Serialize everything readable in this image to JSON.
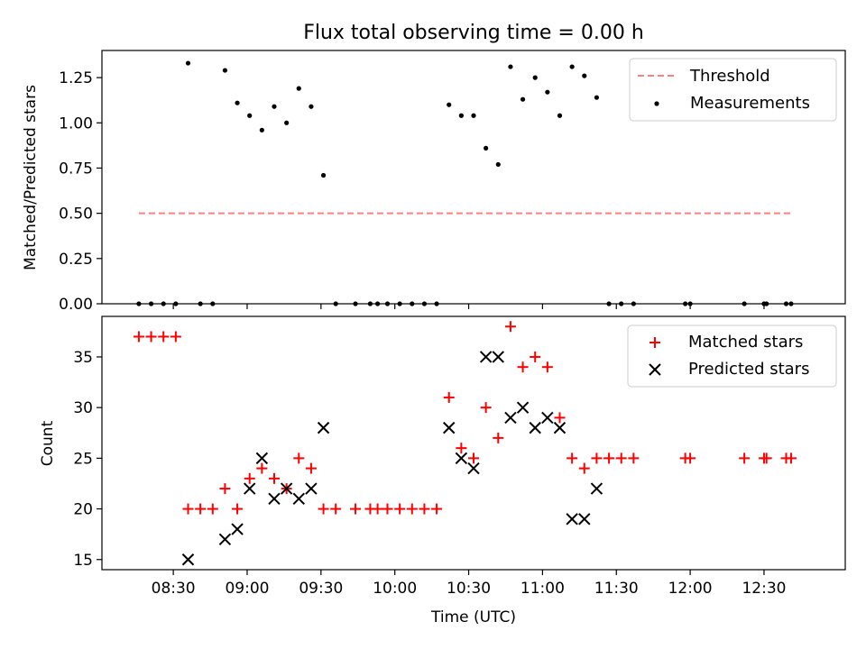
{
  "title": "Flux total observing time = 0.00 h",
  "colors": {
    "threshold": "#ff7f7f",
    "measurements": "#000000",
    "matched": "#ff0000",
    "predicted": "#000000"
  },
  "chart_data": [
    {
      "type": "scatter",
      "ylabel": "Matched/Predicted stars",
      "ylim": [
        0,
        1.4
      ],
      "yticks": [
        "0.00",
        "0.25",
        "0.50",
        "0.75",
        "1.00",
        "1.25"
      ],
      "ytick_values": [
        0,
        0.25,
        0.5,
        0.75,
        1.0,
        1.25
      ],
      "xlim": [
        "08:01",
        "13:03"
      ],
      "threshold": {
        "name": "Threshold",
        "y": 0.5,
        "x_start": "08:16",
        "x_end": "12:41"
      },
      "legend_position": "upper right",
      "series": [
        {
          "name": "Measurements",
          "marker": "dot",
          "points": [
            [
              "08:16",
              0
            ],
            [
              "08:21",
              0
            ],
            [
              "08:26",
              0
            ],
            [
              "08:31",
              0
            ],
            [
              "08:36",
              1.33
            ],
            [
              "08:41",
              0
            ],
            [
              "08:46",
              0
            ],
            [
              "08:51",
              1.29
            ],
            [
              "08:56",
              1.11
            ],
            [
              "09:01",
              1.04
            ],
            [
              "09:06",
              0.96
            ],
            [
              "09:11",
              1.09
            ],
            [
              "09:16",
              1.0
            ],
            [
              "09:21",
              1.19
            ],
            [
              "09:26",
              1.09
            ],
            [
              "09:31",
              0.71
            ],
            [
              "09:36",
              0
            ],
            [
              "09:44",
              0
            ],
            [
              "09:50",
              0
            ],
            [
              "09:53",
              0
            ],
            [
              "09:57",
              0
            ],
            [
              "10:02",
              0
            ],
            [
              "10:07",
              0
            ],
            [
              "10:12",
              0
            ],
            [
              "10:17",
              0
            ],
            [
              "10:22",
              1.1
            ],
            [
              "10:27",
              1.04
            ],
            [
              "10:32",
              1.04
            ],
            [
              "10:37",
              0.86
            ],
            [
              "10:42",
              0.77
            ],
            [
              "10:47",
              1.31
            ],
            [
              "10:52",
              1.13
            ],
            [
              "10:57",
              1.25
            ],
            [
              "11:02",
              1.17
            ],
            [
              "11:07",
              1.04
            ],
            [
              "11:12",
              1.31
            ],
            [
              "11:17",
              1.26
            ],
            [
              "11:22",
              1.14
            ],
            [
              "11:27",
              0
            ],
            [
              "11:32",
              0
            ],
            [
              "11:37",
              0
            ],
            [
              "11:58",
              0
            ],
            [
              "12:00",
              0
            ],
            [
              "12:22",
              0
            ],
            [
              "12:30",
              0
            ],
            [
              "12:31",
              0
            ],
            [
              "12:39",
              0
            ],
            [
              "12:41",
              0
            ]
          ]
        }
      ]
    },
    {
      "type": "scatter",
      "xlabel": "Time (UTC)",
      "ylabel": "Count",
      "ylim": [
        14,
        39
      ],
      "yticks": [
        "15",
        "20",
        "25",
        "30",
        "35"
      ],
      "ytick_values": [
        15,
        20,
        25,
        30,
        35
      ],
      "xlim": [
        "08:01",
        "13:03"
      ],
      "xticks": [
        "08:30",
        "09:00",
        "09:30",
        "10:00",
        "10:30",
        "11:00",
        "11:30",
        "12:00",
        "12:30"
      ],
      "legend_position": "upper right",
      "series": [
        {
          "name": "Matched stars",
          "marker": "plus",
          "points": [
            [
              "08:16",
              37
            ],
            [
              "08:21",
              37
            ],
            [
              "08:26",
              37
            ],
            [
              "08:31",
              37
            ],
            [
              "08:36",
              20
            ],
            [
              "08:41",
              20
            ],
            [
              "08:46",
              20
            ],
            [
              "08:51",
              22
            ],
            [
              "08:56",
              20
            ],
            [
              "09:01",
              23
            ],
            [
              "09:06",
              24
            ],
            [
              "09:11",
              23
            ],
            [
              "09:16",
              22
            ],
            [
              "09:21",
              25
            ],
            [
              "09:26",
              24
            ],
            [
              "09:31",
              20
            ],
            [
              "09:36",
              20
            ],
            [
              "09:44",
              20
            ],
            [
              "09:50",
              20
            ],
            [
              "09:53",
              20
            ],
            [
              "09:57",
              20
            ],
            [
              "10:02",
              20
            ],
            [
              "10:07",
              20
            ],
            [
              "10:12",
              20
            ],
            [
              "10:17",
              20
            ],
            [
              "10:22",
              31
            ],
            [
              "10:27",
              26
            ],
            [
              "10:32",
              25
            ],
            [
              "10:37",
              30
            ],
            [
              "10:42",
              27
            ],
            [
              "10:47",
              38
            ],
            [
              "10:52",
              34
            ],
            [
              "10:57",
              35
            ],
            [
              "11:02",
              34
            ],
            [
              "11:07",
              29
            ],
            [
              "11:12",
              25
            ],
            [
              "11:17",
              24
            ],
            [
              "11:22",
              25
            ],
            [
              "11:27",
              25
            ],
            [
              "11:32",
              25
            ],
            [
              "11:37",
              25
            ],
            [
              "11:58",
              25
            ],
            [
              "12:00",
              25
            ],
            [
              "12:22",
              25
            ],
            [
              "12:30",
              25
            ],
            [
              "12:31",
              25
            ],
            [
              "12:39",
              25
            ],
            [
              "12:41",
              25
            ]
          ]
        },
        {
          "name": "Predicted stars",
          "marker": "x",
          "points": [
            [
              "08:36",
              15
            ],
            [
              "08:51",
              17
            ],
            [
              "08:56",
              18
            ],
            [
              "09:01",
              22
            ],
            [
              "09:06",
              25
            ],
            [
              "09:11",
              21
            ],
            [
              "09:16",
              22
            ],
            [
              "09:21",
              21
            ],
            [
              "09:26",
              22
            ],
            [
              "09:31",
              28
            ],
            [
              "10:22",
              28
            ],
            [
              "10:27",
              25
            ],
            [
              "10:32",
              24
            ],
            [
              "10:37",
              35
            ],
            [
              "10:42",
              35
            ],
            [
              "10:47",
              29
            ],
            [
              "10:52",
              30
            ],
            [
              "10:57",
              28
            ],
            [
              "11:02",
              29
            ],
            [
              "11:07",
              28
            ],
            [
              "11:12",
              19
            ],
            [
              "11:17",
              19
            ],
            [
              "11:22",
              22
            ]
          ]
        }
      ]
    }
  ]
}
